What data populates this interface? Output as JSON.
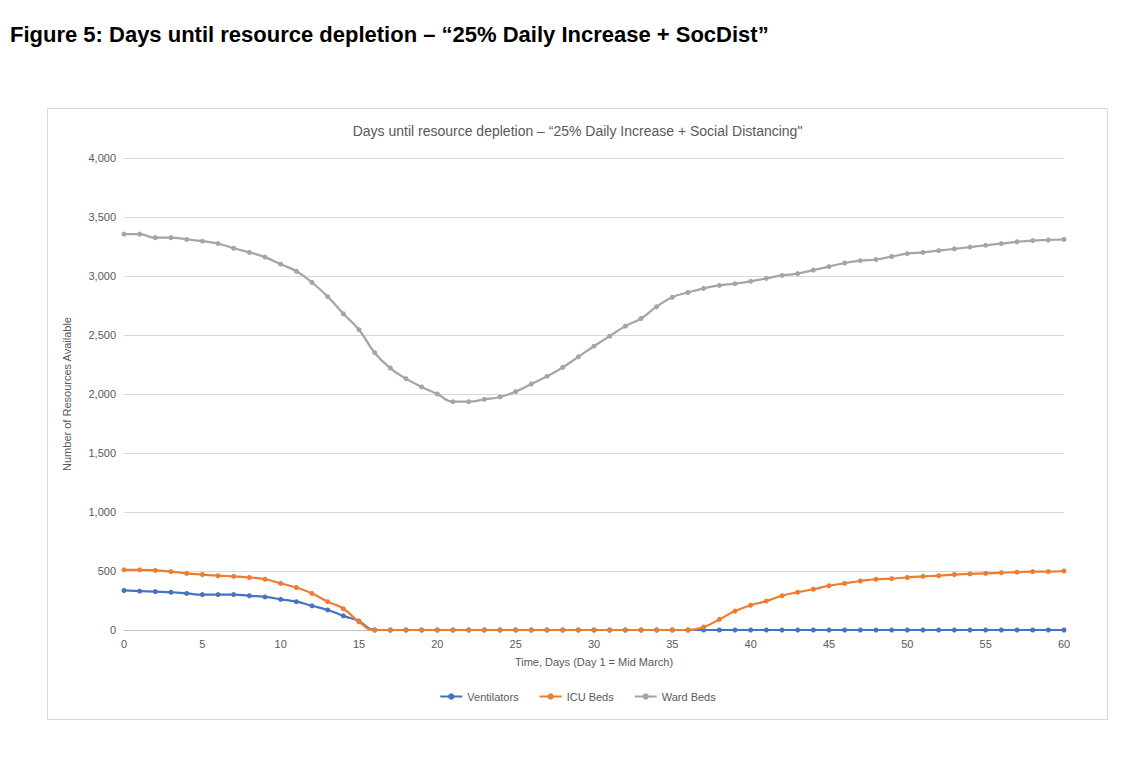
{
  "heading": "Figure 5: Days until resource depletion – “25% Daily Increase + SocDist”",
  "chart_data": {
    "type": "line",
    "title": "Days until resource depletion – “25% Daily Increase + Social Distancing\"",
    "x_label": "Time, Days (Day 1 = Mid March)",
    "y_label": "Number of Resources Available",
    "x": [
      0,
      1,
      2,
      3,
      4,
      5,
      6,
      7,
      8,
      9,
      10,
      11,
      12,
      13,
      14,
      15,
      16,
      17,
      18,
      19,
      20,
      21,
      22,
      23,
      24,
      25,
      26,
      27,
      28,
      29,
      30,
      31,
      32,
      33,
      34,
      35,
      36,
      37,
      38,
      39,
      40,
      41,
      42,
      43,
      44,
      45,
      46,
      47,
      48,
      49,
      50,
      51,
      52,
      53,
      54,
      55,
      56,
      57,
      58,
      59,
      60
    ],
    "series": [
      {
        "name": "Ventilators",
        "color": "#4472c4",
        "values": [
          335,
          330,
          325,
          320,
          310,
          300,
          300,
          300,
          290,
          280,
          260,
          240,
          205,
          170,
          120,
          75,
          0,
          0,
          0,
          0,
          0,
          0,
          0,
          0,
          0,
          0,
          0,
          0,
          0,
          0,
          0,
          0,
          0,
          0,
          0,
          0,
          0,
          0,
          0,
          0,
          0,
          0,
          0,
          0,
          0,
          0,
          0,
          0,
          0,
          0,
          0,
          0,
          0,
          0,
          0,
          0,
          0,
          0,
          0,
          0,
          0
        ]
      },
      {
        "name": "ICU Beds",
        "color": "#ed7d31",
        "values": [
          510,
          510,
          505,
          495,
          480,
          470,
          460,
          455,
          445,
          430,
          395,
          360,
          310,
          240,
          180,
          70,
          0,
          0,
          0,
          0,
          0,
          0,
          0,
          0,
          0,
          0,
          0,
          0,
          0,
          0,
          0,
          0,
          0,
          0,
          0,
          0,
          0,
          25,
          90,
          160,
          210,
          245,
          290,
          320,
          345,
          375,
          395,
          415,
          430,
          435,
          445,
          455,
          460,
          470,
          475,
          480,
          485,
          490,
          495,
          495,
          500
        ]
      },
      {
        "name": "Ward Beds",
        "color": "#a5a5a5",
        "values": [
          3355,
          3355,
          3325,
          3325,
          3310,
          3295,
          3275,
          3235,
          3200,
          3160,
          3100,
          3040,
          2945,
          2825,
          2680,
          2545,
          2350,
          2220,
          2130,
          2060,
          2000,
          1935,
          1935,
          1955,
          1975,
          2020,
          2085,
          2150,
          2225,
          2315,
          2405,
          2490,
          2575,
          2640,
          2740,
          2820,
          2860,
          2895,
          2920,
          2935,
          2955,
          2980,
          3005,
          3020,
          3050,
          3080,
          3110,
          3130,
          3140,
          3165,
          3190,
          3200,
          3215,
          3230,
          3245,
          3260,
          3275,
          3290,
          3300,
          3305,
          3310
        ]
      }
    ],
    "xlim": [
      0,
      60
    ],
    "xticks": [
      0,
      5,
      10,
      15,
      20,
      25,
      30,
      35,
      40,
      45,
      50,
      55,
      60
    ],
    "ylim": [
      0,
      4000
    ],
    "yticks": [
      0,
      500,
      1000,
      1500,
      2000,
      2500,
      3000,
      3500,
      4000
    ],
    "grid": true,
    "legend": "bottom",
    "marker": "circle",
    "line_style": "smooth"
  }
}
